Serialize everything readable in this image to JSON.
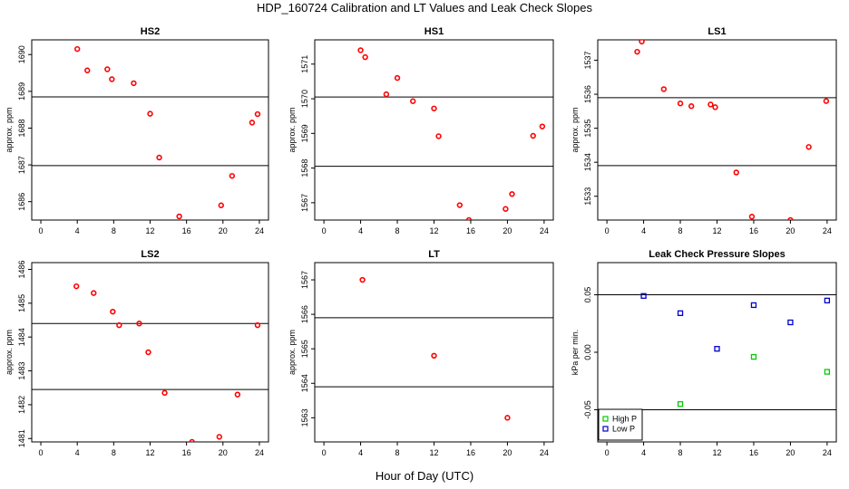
{
  "title": "HDP_160724  Calibration and LT Values and Leak Check Slopes",
  "xlabel": "Hour of Day (UTC)",
  "colors": {
    "red": "#ff0000",
    "green": "#00cc00",
    "blue": "#0000cc",
    "axis": "#000000"
  },
  "chart_data": [
    {
      "type": "scatter",
      "title": "HS2",
      "ylabel": "approx. ppm",
      "xlim": [
        -1,
        25
      ],
      "ylim": [
        1685.5,
        1690.4
      ],
      "xticks": [
        0,
        4,
        8,
        12,
        16,
        20,
        24
      ],
      "yticks": [
        1686,
        1687,
        1688,
        1689,
        1690
      ],
      "hlines": [
        1688.85,
        1686.98
      ],
      "series": [
        {
          "color": "#ff0000",
          "marker": "circle",
          "x": [
            4.0,
            5.1,
            7.3,
            7.8,
            10.2,
            12.0,
            13.0,
            15.2,
            18.3,
            19.8,
            21.0,
            23.2,
            23.8
          ],
          "y": [
            1690.15,
            1689.57,
            1689.6,
            1689.33,
            1689.22,
            1688.39,
            1687.2,
            1685.6,
            1685.4,
            1685.9,
            1686.7,
            1688.15,
            1688.38
          ]
        }
      ]
    },
    {
      "type": "scatter",
      "title": "HS1",
      "ylabel": "approx. ppm",
      "xlim": [
        -1,
        25
      ],
      "ylim": [
        1566.5,
        1571.7
      ],
      "xticks": [
        0,
        4,
        8,
        12,
        16,
        20,
        24
      ],
      "yticks": [
        1567,
        1568,
        1569,
        1570,
        1571
      ],
      "hlines": [
        1570.05,
        1568.05
      ],
      "series": [
        {
          "color": "#ff0000",
          "marker": "circle",
          "x": [
            4.0,
            4.5,
            6.8,
            8.0,
            9.7,
            12.0,
            12.5,
            14.8,
            15.8,
            19.8,
            20.5,
            22.8,
            23.8
          ],
          "y": [
            1571.4,
            1571.2,
            1570.13,
            1570.6,
            1569.93,
            1569.72,
            1568.92,
            1566.93,
            1566.5,
            1566.82,
            1567.25,
            1568.93,
            1569.2
          ]
        }
      ]
    },
    {
      "type": "scatter",
      "title": "LS1",
      "ylabel": "approx. ppm",
      "xlim": [
        -1,
        25
      ],
      "ylim": [
        1532.3,
        1537.6
      ],
      "xticks": [
        0,
        4,
        8,
        12,
        16,
        20,
        24
      ],
      "yticks": [
        1533,
        1534,
        1535,
        1536,
        1537
      ],
      "hlines": [
        1535.9,
        1533.9
      ],
      "series": [
        {
          "color": "#ff0000",
          "marker": "circle",
          "x": [
            3.3,
            3.8,
            6.2,
            8.0,
            9.2,
            11.3,
            11.8,
            14.1,
            15.8,
            20.0,
            22.0,
            23.9
          ],
          "y": [
            1537.25,
            1537.55,
            1536.15,
            1535.73,
            1535.65,
            1535.7,
            1535.62,
            1533.7,
            1532.4,
            1532.3,
            1534.45,
            1535.8
          ]
        }
      ]
    },
    {
      "type": "scatter",
      "title": "LS2",
      "ylabel": "approx. ppm",
      "xlim": [
        -1,
        25
      ],
      "ylim": [
        1480.9,
        1486.2
      ],
      "xticks": [
        0,
        4,
        8,
        12,
        16,
        20,
        24
      ],
      "yticks": [
        1481,
        1482,
        1483,
        1484,
        1485,
        1486
      ],
      "hlines": [
        1484.4,
        1482.45
      ],
      "series": [
        {
          "color": "#ff0000",
          "marker": "circle",
          "x": [
            3.9,
            5.8,
            7.9,
            8.6,
            10.8,
            11.8,
            13.6,
            16.6,
            19.6,
            21.6,
            23.8
          ],
          "y": [
            1485.5,
            1485.3,
            1484.75,
            1484.35,
            1484.4,
            1483.55,
            1482.35,
            1480.9,
            1481.05,
            1482.3,
            1484.35
          ]
        }
      ]
    },
    {
      "type": "scatter",
      "title": "LT",
      "ylabel": "approx. ppm",
      "xlim": [
        -1,
        25
      ],
      "ylim": [
        1562.3,
        1567.5
      ],
      "xticks": [
        0,
        4,
        8,
        12,
        16,
        20,
        24
      ],
      "yticks": [
        1563,
        1564,
        1565,
        1566,
        1567
      ],
      "hlines": [
        1565.9,
        1563.9
      ],
      "series": [
        {
          "color": "#ff0000",
          "marker": "circle",
          "x": [
            4.2,
            12.0,
            20.0
          ],
          "y": [
            1567.0,
            1564.8,
            1563.0
          ]
        }
      ]
    },
    {
      "type": "scatter",
      "title": "Leak Check Pressure Slopes",
      "ylabel": "kPa per min.",
      "xlim": [
        -1,
        25
      ],
      "ylim": [
        -0.078,
        0.078
      ],
      "xticks": [
        0,
        4,
        8,
        12,
        16,
        20,
        24
      ],
      "yticks": [
        -0.05,
        0.0,
        0.05
      ],
      "ytick_labels": [
        "-0.05",
        "0.00",
        "0.05"
      ],
      "hlines": [
        0.05,
        -0.05
      ],
      "legend": {
        "position": "bottom-left",
        "entries": [
          {
            "label": "High P",
            "color": "#00cc00"
          },
          {
            "label": "Low P",
            "color": "#0000cc"
          }
        ]
      },
      "series": [
        {
          "name": "High P",
          "color": "#00cc00",
          "marker": "square",
          "x": [
            8.0,
            16.0,
            24.0
          ],
          "y": [
            -0.045,
            -0.004,
            -0.017
          ]
        },
        {
          "name": "Low P",
          "color": "#0000cc",
          "marker": "square",
          "x": [
            4.0,
            8.0,
            12.0,
            16.0,
            20.0,
            24.0
          ],
          "y": [
            0.049,
            0.034,
            0.003,
            0.041,
            0.026,
            0.045
          ]
        }
      ]
    }
  ]
}
